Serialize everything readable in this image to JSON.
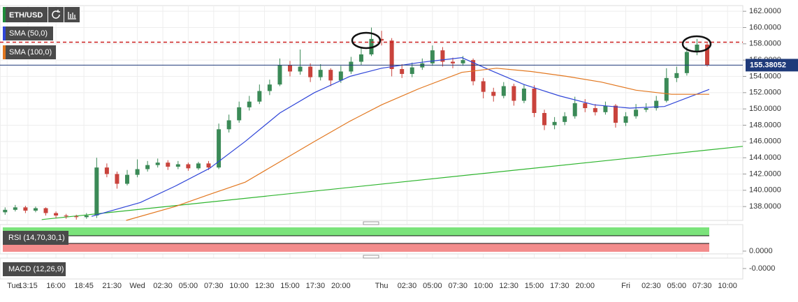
{
  "chart_data": {
    "type": "candlestick",
    "symbol": "ETH/USD",
    "x": [
      -13,
      -12,
      -11,
      -10,
      -9,
      -8,
      -7,
      -6,
      -5,
      -4,
      -3,
      -2,
      -1,
      0,
      1,
      2,
      3,
      4,
      5,
      6,
      7,
      8,
      9,
      10,
      11,
      12,
      13,
      14,
      15,
      16,
      17,
      18,
      19,
      20,
      21,
      22,
      23,
      24,
      25,
      26,
      27,
      28,
      29,
      30,
      31,
      32,
      33,
      34,
      35,
      36,
      37,
      38,
      39,
      40,
      41,
      42,
      43,
      44,
      45,
      46,
      47,
      48,
      49,
      50,
      51,
      52,
      53,
      54,
      55,
      56
    ],
    "open": [
      137.3,
      137.6,
      137.9,
      137.5,
      137.8,
      137.2,
      136.9,
      136.8,
      136.7,
      136.9,
      142.8,
      142.0,
      140.8,
      141.9,
      142.6,
      143.1,
      143.4,
      142.9,
      143.2,
      142.7,
      143.3,
      142.8,
      147.5,
      148.6,
      150.2,
      150.9,
      152.2,
      153.0,
      155.4,
      154.6,
      155.2,
      153.9,
      154.8,
      153.5,
      154.6,
      155.8,
      156.7,
      158.6,
      158.4,
      154.9,
      154.3,
      155.1,
      155.6,
      157.2,
      155.8,
      155.6,
      156.0,
      153.4,
      152.1,
      151.6,
      152.8,
      151.0,
      152.5,
      149.5,
      148.0,
      148.4,
      149.1,
      150.7,
      150.1,
      149.6,
      150.4,
      148.3,
      149.1,
      149.9,
      150.1,
      151.0,
      153.8,
      154.4,
      157.0,
      157.9
    ],
    "high": [
      137.9,
      138.2,
      138.1,
      138.0,
      137.9,
      137.4,
      137.1,
      137.0,
      137.2,
      144.0,
      143.3,
      142.3,
      142.5,
      143.8,
      143.6,
      143.9,
      143.7,
      143.6,
      143.4,
      143.5,
      143.6,
      148.2,
      149.3,
      150.9,
      151.6,
      153.0,
      153.6,
      156.2,
      155.9,
      157.3,
      155.6,
      155.5,
      155.0,
      155.3,
      156.4,
      157.5,
      160.0,
      159.6,
      158.7,
      155.5,
      155.7,
      156.2,
      157.8,
      157.6,
      156.3,
      156.5,
      156.2,
      153.8,
      152.6,
      153.3,
      153.1,
      153.0,
      152.9,
      149.9,
      149.0,
      149.6,
      151.5,
      151.2,
      150.6,
      150.9,
      150.6,
      149.6,
      150.6,
      150.7,
      151.6,
      155.0,
      155.2,
      157.6,
      158.6,
      158.1
    ],
    "low": [
      137.0,
      137.4,
      137.2,
      137.3,
      136.9,
      136.6,
      136.5,
      136.4,
      136.5,
      136.6,
      141.6,
      140.2,
      140.6,
      141.6,
      142.3,
      142.8,
      142.5,
      142.6,
      142.4,
      142.5,
      142.5,
      142.6,
      147.1,
      148.3,
      149.8,
      150.6,
      151.7,
      152.8,
      154.0,
      154.2,
      153.3,
      153.5,
      152.8,
      153.2,
      154.3,
      155.4,
      156.5,
      157.8,
      154.0,
      153.8,
      153.9,
      154.8,
      155.3,
      155.2,
      155.0,
      155.3,
      152.9,
      151.3,
      150.9,
      151.3,
      150.4,
      150.7,
      149.0,
      147.4,
      147.5,
      148.0,
      148.8,
      149.6,
      149.2,
      149.3,
      147.7,
      147.9,
      148.8,
      149.6,
      149.8,
      150.8,
      153.3,
      154.1,
      156.6,
      155.2
    ],
    "close": [
      137.6,
      137.9,
      137.5,
      137.8,
      137.2,
      136.9,
      136.8,
      136.7,
      136.9,
      142.8,
      142.0,
      140.8,
      141.9,
      142.6,
      143.1,
      143.4,
      142.9,
      143.2,
      142.7,
      143.3,
      142.8,
      147.5,
      148.6,
      150.2,
      150.9,
      152.2,
      153.0,
      155.4,
      154.6,
      155.2,
      153.9,
      154.8,
      153.5,
      154.6,
      155.8,
      156.7,
      158.6,
      158.4,
      154.9,
      154.3,
      155.1,
      155.6,
      157.2,
      155.8,
      155.6,
      156.0,
      153.4,
      152.1,
      151.6,
      152.8,
      151.0,
      152.5,
      149.5,
      148.0,
      148.4,
      149.1,
      150.7,
      150.1,
      149.6,
      150.4,
      148.3,
      149.1,
      149.9,
      150.1,
      151.0,
      153.8,
      154.4,
      157.0,
      157.9,
      155.4
    ],
    "up_color": "#3b8a57",
    "down_color": "#c9433c",
    "series": [
      {
        "name": "SMA (50,0)",
        "color": "#2f45d8",
        "x": [
          -4.5,
          0.3,
          3.7,
          7.1,
          10.6,
          14,
          17.4,
          20.9,
          24,
          27.7,
          31.9,
          34.6,
          38,
          41.5,
          44.9,
          48.4,
          51.8,
          56.2
        ],
        "values": [
          136.8,
          138.5,
          140.5,
          142.7,
          146,
          149.5,
          152,
          154,
          155,
          155.7,
          156.3,
          154.8,
          153,
          151.6,
          150.5,
          150.1,
          150.3,
          152.4
        ]
      },
      {
        "name": "SMA (100,0)",
        "color": "#e2771f",
        "x": [
          -1.1,
          3.7,
          7.1,
          10.6,
          14,
          17.4,
          20.9,
          24,
          27.7,
          31.9,
          35.3,
          38.7,
          42.2,
          45.6,
          49,
          52.5,
          56.2
        ],
        "values": [
          136.3,
          138,
          139.5,
          141,
          143.5,
          146,
          148.5,
          150.5,
          152.5,
          154.5,
          155,
          154.6,
          154,
          153.3,
          152.3,
          151.8,
          151.8
        ]
      }
    ],
    "trendline": {
      "color": "#2fb52f",
      "x": [
        -9.4,
        59.5
      ],
      "values": [
        136.4,
        145.4
      ]
    },
    "resistance": 158.2,
    "resistance_color": "#cc1f1f",
    "current_price": 155.38052,
    "xlim": [
      -13.5,
      59.5
    ],
    "ylim": [
      136.3,
      162.7
    ],
    "grid": true,
    "xticks": [
      {
        "value": -12.8,
        "label": "Tue"
      },
      {
        "value": -10.75,
        "label": "13:15"
      },
      {
        "value": -8,
        "label": "16:00"
      },
      {
        "value": -5.25,
        "label": "18:45"
      },
      {
        "value": -2.5,
        "label": "21:30"
      },
      {
        "value": 0,
        "label": "Wed"
      },
      {
        "value": 2.5,
        "label": "02:30"
      },
      {
        "value": 5,
        "label": "05:00"
      },
      {
        "value": 7.5,
        "label": "07:30"
      },
      {
        "value": 10,
        "label": "10:00"
      },
      {
        "value": 12.5,
        "label": "12:30"
      },
      {
        "value": 15,
        "label": "15:00"
      },
      {
        "value": 17.5,
        "label": "17:30"
      },
      {
        "value": 20,
        "label": "20:00"
      },
      {
        "value": 24,
        "label": "Thu"
      },
      {
        "value": 26.5,
        "label": "02:30"
      },
      {
        "value": 29,
        "label": "05:00"
      },
      {
        "value": 31.5,
        "label": "07:30"
      },
      {
        "value": 34,
        "label": "10:00"
      },
      {
        "value": 36.5,
        "label": "12:30"
      },
      {
        "value": 39,
        "label": "15:00"
      },
      {
        "value": 41.5,
        "label": "17:30"
      },
      {
        "value": 44,
        "label": "20:00"
      },
      {
        "value": 48,
        "label": "Fri"
      },
      {
        "value": 50.5,
        "label": "02:30"
      },
      {
        "value": 53,
        "label": "05:00"
      },
      {
        "value": 55.5,
        "label": "07:30"
      },
      {
        "value": 58,
        "label": "10:00"
      }
    ],
    "yticks": [
      {
        "value": 138,
        "label": "138.0000"
      },
      {
        "value": 140,
        "label": "140.0000"
      },
      {
        "value": 142,
        "label": "142.0000"
      },
      {
        "value": 144,
        "label": "144.0000"
      },
      {
        "value": 146,
        "label": "146.0000"
      },
      {
        "value": 148,
        "label": "148.0000"
      },
      {
        "value": 150,
        "label": "150.0000"
      },
      {
        "value": 152,
        "label": "152.0000"
      },
      {
        "value": 154,
        "label": "154.0000"
      },
      {
        "value": 156,
        "label": "156.0000"
      },
      {
        "value": 158,
        "label": "158.0000"
      },
      {
        "value": 160,
        "label": "160.0000"
      },
      {
        "value": 162,
        "label": "162.0000"
      }
    ],
    "rsi": {
      "name": "RSI (14,70,30,1)",
      "tick": {
        "value": 0,
        "label": "0.0000"
      }
    },
    "macd": {
      "name": "MACD (12,26,9)",
      "tick": {
        "value": 0,
        "label": "-0.0000"
      }
    }
  }
}
